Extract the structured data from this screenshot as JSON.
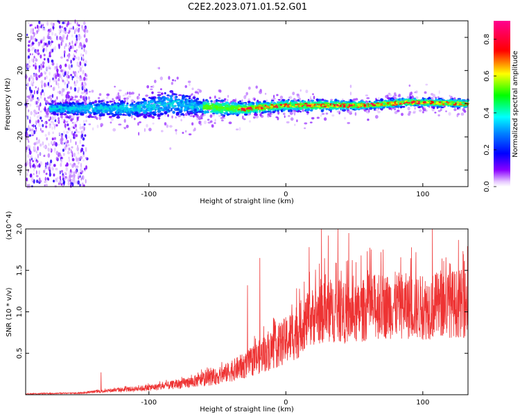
{
  "title": "C2E2.2023.071.01.52.G01",
  "chart_data": [
    {
      "type": "heatmap",
      "title": "C2E2.2023.071.01.52.G01",
      "xlabel": "Height of straight line (km)",
      "ylabel": "Frequency (Hz)",
      "xlim": [
        -190,
        133
      ],
      "ylim": [
        -50,
        50
      ],
      "xticks": [
        -100,
        0,
        100
      ],
      "yticks": [
        -40,
        -20,
        0,
        20,
        40
      ],
      "colorbar": {
        "label": "Normalized spectral amplitude",
        "range": [
          0.0,
          0.9
        ],
        "ticks": [
          0.0,
          0.2,
          0.4,
          0.6,
          0.8
        ],
        "colormap": [
          "#ffffff",
          "#7000ff",
          "#0000ff",
          "#00ffff",
          "#00ff00",
          "#ffff00",
          "#ff0000",
          "#ff0090"
        ]
      },
      "band_center_hz": {
        "x": [
          -170,
          -140,
          -110,
          -85,
          -60,
          -30,
          0,
          30,
          60,
          90,
          133
        ],
        "y": [
          -3,
          -3,
          -3,
          0,
          -2,
          -3,
          -1,
          -1,
          -1,
          1,
          0
        ]
      },
      "band_halfwidth_hz": {
        "x": [
          -170,
          -140,
          -110,
          -85,
          -60,
          -30,
          0,
          30,
          60,
          90,
          133
        ],
        "y": [
          5,
          7,
          8,
          12,
          7,
          6,
          5,
          5,
          4,
          4,
          4
        ]
      },
      "noise_region_x": [
        -190,
        -145
      ]
    },
    {
      "type": "line",
      "xlabel": "Height of straight line (km)",
      "ylabel": "SNR (10 * v/v)",
      "multiplier": "(x10^4)",
      "xlim": [
        -190,
        133
      ],
      "ylim": [
        0,
        2.0
      ],
      "xticks": [
        -100,
        0,
        100
      ],
      "yticks": [
        0.5,
        1.0,
        1.5,
        2.0
      ],
      "series": [
        {
          "color": "#ee3333",
          "envelope_x": [
            -190,
            -150,
            -130,
            -110,
            -90,
            -70,
            -50,
            -30,
            -20,
            -10,
            0,
            10,
            20,
            30,
            40,
            50,
            60,
            80,
            100,
            120,
            133
          ],
          "envelope_y": [
            0.01,
            0.02,
            0.05,
            0.07,
            0.1,
            0.15,
            0.22,
            0.35,
            0.45,
            0.55,
            0.65,
            0.8,
            0.95,
            1.0,
            1.0,
            0.95,
            1.05,
            1.08,
            1.05,
            1.1,
            1.1
          ],
          "peaks": [
            {
              "x": -135,
              "y": 0.27
            },
            {
              "x": -28,
              "y": 1.32
            },
            {
              "x": -19,
              "y": 1.65
            },
            {
              "x": 17,
              "y": 1.78
            },
            {
              "x": 26,
              "y": 2.05
            },
            {
              "x": 31,
              "y": 1.92
            },
            {
              "x": 38,
              "y": 2.05
            },
            {
              "x": 46,
              "y": 1.95
            },
            {
              "x": 55,
              "y": 1.68
            },
            {
              "x": 95,
              "y": 1.72
            },
            {
              "x": 107,
              "y": 2.05
            },
            {
              "x": 120,
              "y": 1.58
            }
          ]
        }
      ]
    }
  ]
}
